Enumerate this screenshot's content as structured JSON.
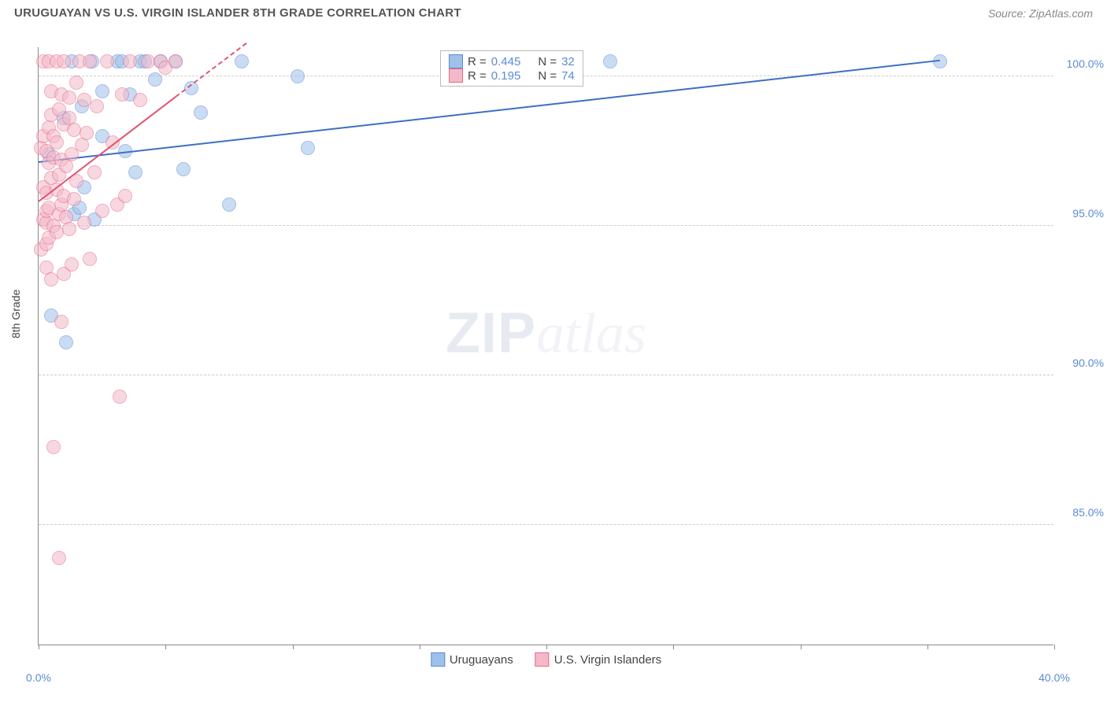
{
  "title": "URUGUAYAN VS U.S. VIRGIN ISLANDER 8TH GRADE CORRELATION CHART",
  "source": "Source: ZipAtlas.com",
  "ylabel": "8th Grade",
  "watermark_zip": "ZIP",
  "watermark_atlas": "atlas",
  "chart": {
    "type": "scatter",
    "xlim": [
      0,
      40
    ],
    "ylim": [
      81,
      101
    ],
    "x_ticks": [
      0,
      5,
      10,
      15,
      20,
      25,
      30,
      35,
      40
    ],
    "x_visible_labels": [
      {
        "v": 0,
        "l": "0.0%"
      },
      {
        "v": 40,
        "l": "40.0%"
      }
    ],
    "y_grid": [
      {
        "v": 85,
        "l": "85.0%"
      },
      {
        "v": 90,
        "l": "90.0%"
      },
      {
        "v": 95,
        "l": "95.0%"
      },
      {
        "v": 100,
        "l": "100.0%"
      }
    ],
    "marker_radius": 9,
    "marker_opacity": 0.55,
    "series": [
      {
        "name": "Uruguayans",
        "color_fill": "#9fc0ea",
        "color_stroke": "#5b8bd4",
        "r": 0.445,
        "n": 32,
        "trend": {
          "x1": 0,
          "y1": 97.1,
          "x2": 35.5,
          "y2": 100.5,
          "color": "#3d6fc4"
        },
        "points": [
          [
            0.4,
            97.4
          ],
          [
            0.5,
            92.0
          ],
          [
            1.0,
            98.6
          ],
          [
            1.1,
            91.1
          ],
          [
            1.3,
            100.5
          ],
          [
            1.4,
            95.4
          ],
          [
            1.6,
            95.6
          ],
          [
            1.7,
            99.0
          ],
          [
            1.8,
            96.3
          ],
          [
            2.1,
            100.5
          ],
          [
            2.2,
            95.2
          ],
          [
            2.5,
            98.0
          ],
          [
            2.5,
            99.5
          ],
          [
            3.1,
            100.5
          ],
          [
            3.3,
            100.5
          ],
          [
            3.4,
            97.5
          ],
          [
            3.6,
            99.4
          ],
          [
            3.8,
            96.8
          ],
          [
            4.0,
            100.5
          ],
          [
            4.2,
            100.5
          ],
          [
            4.6,
            99.9
          ],
          [
            4.8,
            100.5
          ],
          [
            5.4,
            100.5
          ],
          [
            5.7,
            96.9
          ],
          [
            6.0,
            99.6
          ],
          [
            6.4,
            98.8
          ],
          [
            7.5,
            95.7
          ],
          [
            8.0,
            100.5
          ],
          [
            10.2,
            100.0
          ],
          [
            10.6,
            97.6
          ],
          [
            22.5,
            100.5
          ],
          [
            35.5,
            100.5
          ]
        ]
      },
      {
        "name": "U.S. Virgin Islanders",
        "color_fill": "#f4b9c8",
        "color_stroke": "#e76a8b",
        "r": 0.195,
        "n": 74,
        "trend": {
          "x1": 0,
          "y1": 95.8,
          "x2": 5.4,
          "y2": 99.3,
          "ext_x2": 8.2,
          "ext_y2": 101.1,
          "color": "#e2536f"
        },
        "points": [
          [
            0.1,
            94.2
          ],
          [
            0.1,
            97.6
          ],
          [
            0.2,
            95.2
          ],
          [
            0.2,
            96.3
          ],
          [
            0.2,
            98.0
          ],
          [
            0.2,
            100.5
          ],
          [
            0.3,
            93.6
          ],
          [
            0.3,
            94.4
          ],
          [
            0.3,
            95.1
          ],
          [
            0.3,
            95.5
          ],
          [
            0.3,
            96.1
          ],
          [
            0.3,
            97.5
          ],
          [
            0.4,
            94.6
          ],
          [
            0.4,
            95.6
          ],
          [
            0.4,
            97.1
          ],
          [
            0.4,
            98.3
          ],
          [
            0.4,
            100.5
          ],
          [
            0.5,
            93.2
          ],
          [
            0.5,
            96.6
          ],
          [
            0.5,
            98.7
          ],
          [
            0.5,
            99.5
          ],
          [
            0.6,
            87.6
          ],
          [
            0.6,
            95.0
          ],
          [
            0.6,
            97.3
          ],
          [
            0.6,
            98.0
          ],
          [
            0.7,
            94.8
          ],
          [
            0.7,
            96.2
          ],
          [
            0.7,
            97.8
          ],
          [
            0.7,
            100.5
          ],
          [
            0.8,
            83.9
          ],
          [
            0.8,
            95.4
          ],
          [
            0.8,
            96.7
          ],
          [
            0.8,
            98.9
          ],
          [
            0.9,
            91.8
          ],
          [
            0.9,
            95.7
          ],
          [
            0.9,
            97.2
          ],
          [
            0.9,
            99.4
          ],
          [
            1.0,
            93.4
          ],
          [
            1.0,
            96.0
          ],
          [
            1.0,
            98.4
          ],
          [
            1.0,
            100.5
          ],
          [
            1.1,
            95.3
          ],
          [
            1.1,
            97.0
          ],
          [
            1.2,
            94.9
          ],
          [
            1.2,
            98.6
          ],
          [
            1.2,
            99.3
          ],
          [
            1.3,
            93.7
          ],
          [
            1.3,
            97.4
          ],
          [
            1.4,
            95.9
          ],
          [
            1.4,
            98.2
          ],
          [
            1.5,
            96.5
          ],
          [
            1.5,
            99.8
          ],
          [
            1.6,
            100.5
          ],
          [
            1.7,
            97.7
          ],
          [
            1.8,
            95.1
          ],
          [
            1.8,
            99.2
          ],
          [
            1.9,
            98.1
          ],
          [
            2.0,
            93.9
          ],
          [
            2.0,
            100.5
          ],
          [
            2.2,
            96.8
          ],
          [
            2.3,
            99.0
          ],
          [
            2.5,
            95.5
          ],
          [
            2.7,
            100.5
          ],
          [
            2.9,
            97.8
          ],
          [
            3.1,
            95.7
          ],
          [
            3.2,
            89.3
          ],
          [
            3.3,
            99.4
          ],
          [
            3.4,
            96.0
          ],
          [
            3.6,
            100.5
          ],
          [
            4.0,
            99.2
          ],
          [
            4.3,
            100.5
          ],
          [
            4.8,
            100.5
          ],
          [
            5.0,
            100.3
          ],
          [
            5.4,
            100.5
          ]
        ]
      }
    ]
  },
  "legend_labels": {
    "r_prefix": "R = ",
    "n_prefix": "N = "
  }
}
